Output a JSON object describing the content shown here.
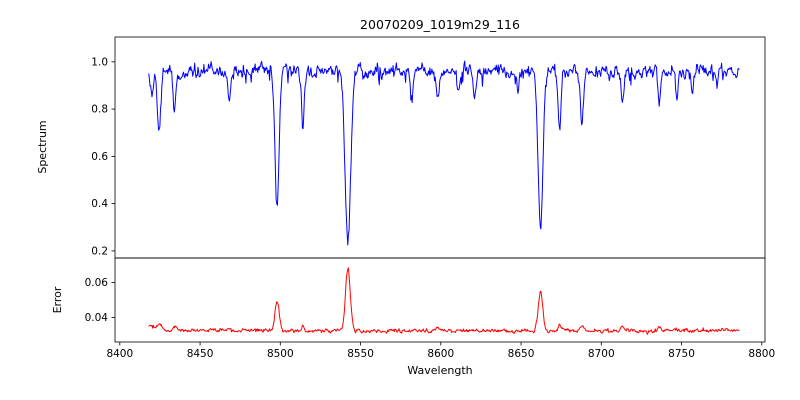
{
  "chart_data": {
    "type": "line",
    "title": "20070209_1019m29_116",
    "xlabel": "Wavelength",
    "background_color": "#ffffff",
    "axis_color": "#000000",
    "xlim": [
      8397,
      8802
    ],
    "xticks": [
      8400,
      8450,
      8500,
      8550,
      8600,
      8650,
      8700,
      8750,
      8800
    ],
    "x_start": 8418,
    "x_end": 8786,
    "n_points": 900,
    "panels": [
      {
        "name": "spectrum",
        "ylabel": "Spectrum",
        "line_color": "#0000ff",
        "ylim": [
          0.17,
          1.105
        ],
        "yticks": [
          0.2,
          0.4,
          0.6,
          0.8,
          1.0
        ],
        "ytick_labels": [
          "0.2",
          "0.4",
          "0.6",
          "0.8",
          "1.0"
        ],
        "continuum": 0.96,
        "noise_sigma": 0.024,
        "absorption_lines": [
          {
            "center": 8420.0,
            "depth": 0.1,
            "sigma": 0.9
          },
          {
            "center": 8424.5,
            "depth": 0.24,
            "sigma": 1.0
          },
          {
            "center": 8434.0,
            "depth": 0.15,
            "sigma": 0.9
          },
          {
            "center": 8468.0,
            "depth": 0.11,
            "sigma": 0.8
          },
          {
            "center": 8498.0,
            "depth": 0.555,
            "sigma": 1.3
          },
          {
            "center": 8514.0,
            "depth": 0.22,
            "sigma": 0.9
          },
          {
            "center": 8542.1,
            "depth": 0.72,
            "sigma": 1.7
          },
          {
            "center": 8582.0,
            "depth": 0.12,
            "sigma": 0.8
          },
          {
            "center": 8598.0,
            "depth": 0.13,
            "sigma": 0.9
          },
          {
            "center": 8611.0,
            "depth": 0.1,
            "sigma": 0.7
          },
          {
            "center": 8621.0,
            "depth": 0.11,
            "sigma": 0.8
          },
          {
            "center": 8648.0,
            "depth": 0.09,
            "sigma": 0.7
          },
          {
            "center": 8662.1,
            "depth": 0.67,
            "sigma": 1.5
          },
          {
            "center": 8674.0,
            "depth": 0.25,
            "sigma": 0.9
          },
          {
            "center": 8688.0,
            "depth": 0.24,
            "sigma": 1.0
          },
          {
            "center": 8713.0,
            "depth": 0.13,
            "sigma": 0.8
          },
          {
            "center": 8736.0,
            "depth": 0.12,
            "sigma": 0.8
          },
          {
            "center": 8747.0,
            "depth": 0.1,
            "sigma": 0.7
          },
          {
            "center": 8757.0,
            "depth": 0.1,
            "sigma": 0.7
          },
          {
            "center": 8772.0,
            "depth": 0.08,
            "sigma": 0.7
          }
        ]
      },
      {
        "name": "error",
        "ylabel": "Error",
        "line_color": "#ff0000",
        "ylim": [
          0.026,
          0.074
        ],
        "yticks": [
          0.04,
          0.06
        ],
        "ytick_labels": [
          "0.04",
          "0.06"
        ],
        "baseline": 0.0325,
        "noise_sigma": 0.0009,
        "peaks": [
          {
            "center": 8419.0,
            "height": 0.003,
            "sigma": 2.0
          },
          {
            "center": 8424.5,
            "height": 0.004,
            "sigma": 1.4
          },
          {
            "center": 8434.0,
            "height": 0.003,
            "sigma": 1.2
          },
          {
            "center": 8468.0,
            "height": 0.0015,
            "sigma": 1.0
          },
          {
            "center": 8498.0,
            "height": 0.017,
            "sigma": 1.3
          },
          {
            "center": 8514.0,
            "height": 0.0025,
            "sigma": 1.0
          },
          {
            "center": 8542.1,
            "height": 0.035,
            "sigma": 1.5
          },
          {
            "center": 8598.0,
            "height": 0.0015,
            "sigma": 1.0
          },
          {
            "center": 8662.1,
            "height": 0.022,
            "sigma": 1.4
          },
          {
            "center": 8674.0,
            "height": 0.003,
            "sigma": 1.0
          },
          {
            "center": 8688.0,
            "height": 0.003,
            "sigma": 1.1
          },
          {
            "center": 8713.0,
            "height": 0.0015,
            "sigma": 0.9
          },
          {
            "center": 8736.0,
            "height": 0.0015,
            "sigma": 0.9
          }
        ]
      }
    ]
  }
}
